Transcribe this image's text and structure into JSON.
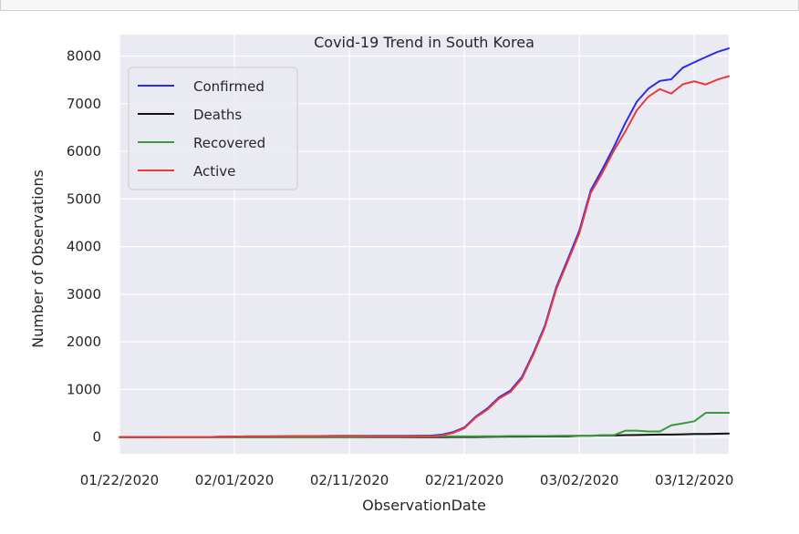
{
  "chart_data": {
    "type": "line",
    "title": "Covid-19 Trend in South Korea",
    "xlabel": "ObservationDate",
    "ylabel": "Number of Observations",
    "x_ticks": [
      "01/22/2020",
      "02/01/2020",
      "02/11/2020",
      "02/21/2020",
      "03/02/2020",
      "03/12/2020"
    ],
    "y_ticks": [
      0,
      1000,
      2000,
      3000,
      4000,
      5000,
      6000,
      7000,
      8000
    ],
    "xlim": [
      "01/22/2020",
      "03/15/2020"
    ],
    "ylim": [
      -350,
      8450
    ],
    "grid": true,
    "legend_position": "top-left",
    "x": [
      "01/22/2020",
      "01/23/2020",
      "01/24/2020",
      "01/25/2020",
      "01/26/2020",
      "01/27/2020",
      "01/28/2020",
      "01/29/2020",
      "01/30/2020",
      "01/31/2020",
      "02/01/2020",
      "02/02/2020",
      "02/03/2020",
      "02/04/2020",
      "02/05/2020",
      "02/06/2020",
      "02/07/2020",
      "02/08/2020",
      "02/09/2020",
      "02/10/2020",
      "02/11/2020",
      "02/12/2020",
      "02/13/2020",
      "02/14/2020",
      "02/15/2020",
      "02/16/2020",
      "02/17/2020",
      "02/18/2020",
      "02/19/2020",
      "02/20/2020",
      "02/21/2020",
      "02/22/2020",
      "02/23/2020",
      "02/24/2020",
      "02/25/2020",
      "02/26/2020",
      "02/27/2020",
      "02/28/2020",
      "02/29/2020",
      "03/01/2020",
      "03/02/2020",
      "03/03/2020",
      "03/04/2020",
      "03/05/2020",
      "03/06/2020",
      "03/07/2020",
      "03/08/2020",
      "03/09/2020",
      "03/10/2020",
      "03/11/2020",
      "03/12/2020",
      "03/13/2020",
      "03/14/2020",
      "03/15/2020"
    ],
    "series": [
      {
        "name": "Confirmed",
        "color": "#2b2bf0",
        "values": [
          1,
          1,
          2,
          2,
          3,
          4,
          4,
          4,
          4,
          11,
          12,
          15,
          15,
          16,
          19,
          23,
          24,
          24,
          25,
          27,
          28,
          28,
          28,
          28,
          28,
          29,
          30,
          31,
          51,
          104,
          204,
          433,
          602,
          833,
          977,
          1261,
          1766,
          2337,
          3150,
          3736,
          4335,
          5186,
          5621,
          6088,
          6593,
          7041,
          7314,
          7478,
          7513,
          7755,
          7869,
          7979,
          8086,
          8162
        ]
      },
      {
        "name": "Deaths",
        "color": "#111111",
        "values": [
          0,
          0,
          0,
          0,
          0,
          0,
          0,
          0,
          0,
          0,
          0,
          0,
          0,
          0,
          0,
          0,
          0,
          0,
          0,
          0,
          0,
          0,
          0,
          0,
          0,
          0,
          0,
          0,
          0,
          1,
          2,
          2,
          6,
          8,
          10,
          12,
          13,
          13,
          16,
          17,
          28,
          28,
          35,
          35,
          42,
          44,
          50,
          53,
          54,
          60,
          66,
          66,
          72,
          75
        ]
      },
      {
        "name": "Recovered",
        "color": "#3a9a3a",
        "values": [
          0,
          0,
          0,
          0,
          0,
          0,
          0,
          0,
          0,
          0,
          0,
          0,
          0,
          0,
          0,
          1,
          1,
          1,
          3,
          3,
          3,
          3,
          7,
          7,
          7,
          9,
          10,
          12,
          16,
          16,
          16,
          16,
          18,
          18,
          22,
          22,
          22,
          22,
          27,
          30,
          30,
          30,
          41,
          41,
          135,
          135,
          118,
          118,
          247,
          288,
          333,
          510,
          510,
          510
        ]
      },
      {
        "name": "Active",
        "color": "#e83c3c",
        "values": [
          1,
          1,
          2,
          2,
          3,
          4,
          4,
          4,
          4,
          11,
          12,
          15,
          15,
          16,
          19,
          22,
          23,
          23,
          22,
          24,
          25,
          25,
          21,
          21,
          21,
          20,
          20,
          19,
          35,
          87,
          186,
          415,
          578,
          807,
          945,
          1227,
          1731,
          2302,
          3107,
          3689,
          4277,
          5128,
          5545,
          6012,
          6416,
          6862,
          7146,
          7307,
          7212,
          7407,
          7470,
          7403,
          7504,
          7577
        ]
      }
    ]
  }
}
